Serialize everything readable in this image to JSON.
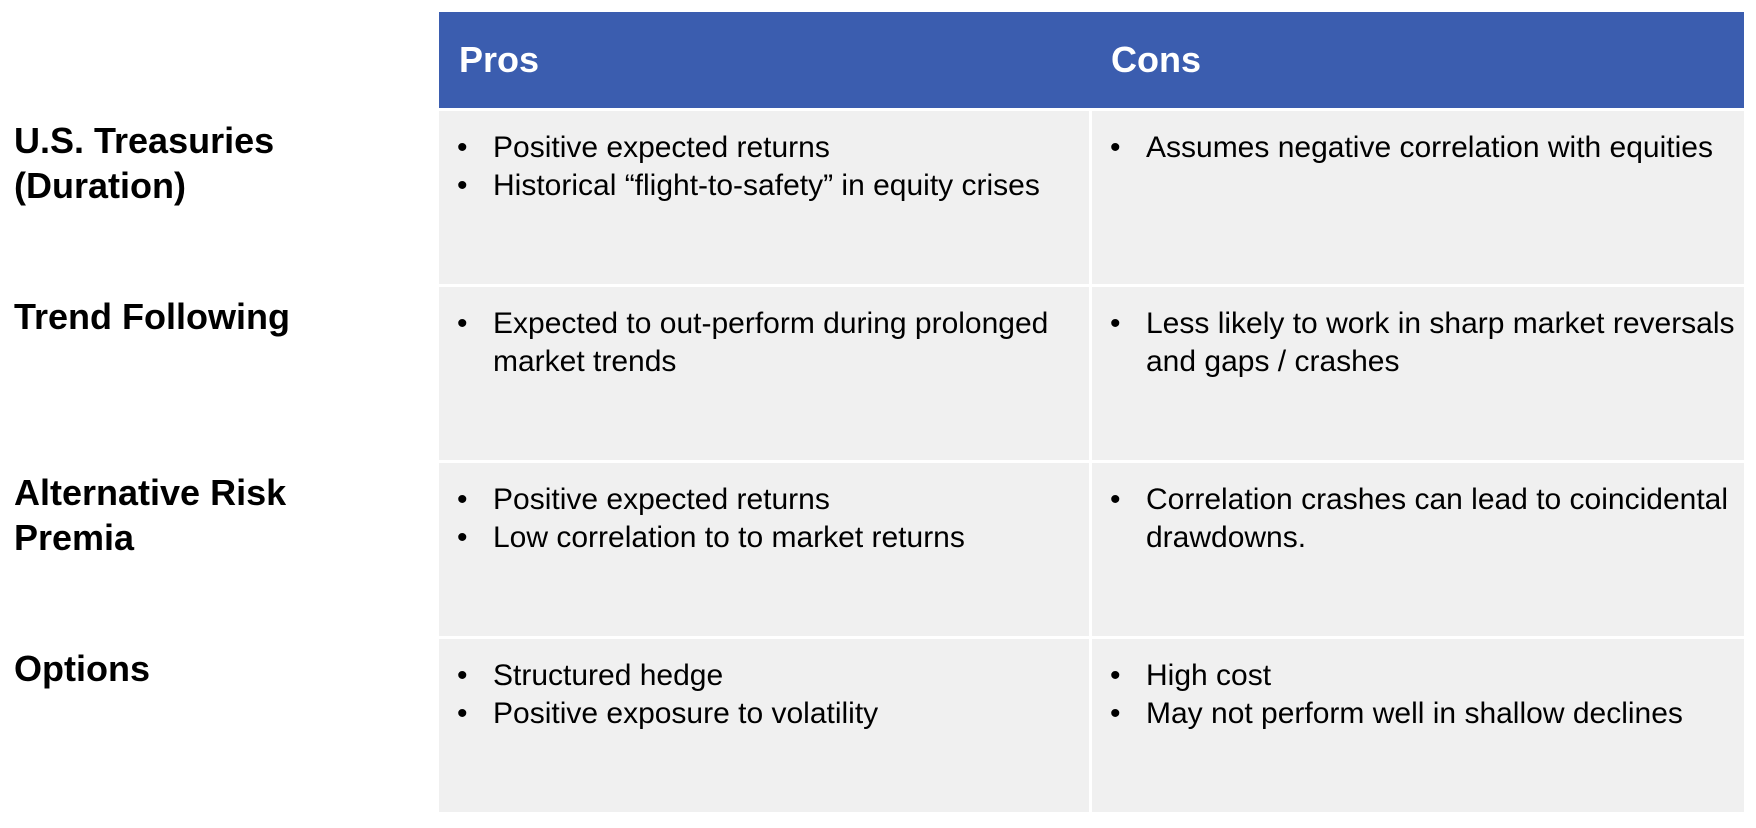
{
  "header": {
    "pros_label": "Pros",
    "cons_label": "Cons"
  },
  "colors": {
    "header_bg": "#3b5daf",
    "cell_bg": "#f0f0f0"
  },
  "rows": [
    {
      "label": "U.S. Treasuries (Duration)",
      "pros": [
        "Positive expected returns",
        "Historical “flight-to-safety” in equity crises"
      ],
      "cons": [
        "Assumes negative correlation with equities"
      ]
    },
    {
      "label": "Trend Following",
      "pros": [
        "Expected to out-perform during prolonged market trends"
      ],
      "cons": [
        "Less likely to work in sharp market reversals and gaps / crashes"
      ]
    },
    {
      "label": "Alternative Risk Premia",
      "pros": [
        "Positive expected returns",
        "Low correlation to to market returns"
      ],
      "cons": [
        "Correlation crashes can lead to coincidental drawdowns."
      ]
    },
    {
      "label": "Options",
      "pros": [
        "Structured hedge",
        "Positive exposure to volatility"
      ],
      "cons": [
        "High cost",
        "May not perform well in shallow declines"
      ]
    }
  ],
  "bullet_glyph": "•"
}
